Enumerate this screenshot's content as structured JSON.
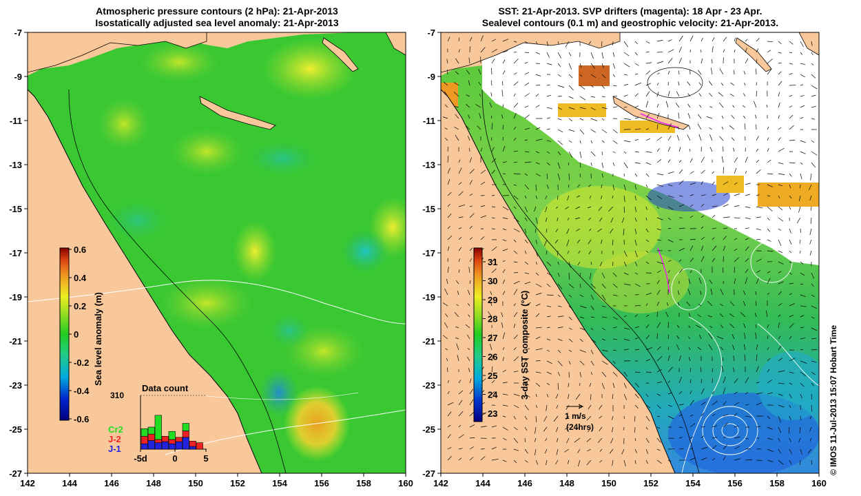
{
  "left_panel": {
    "title_line1": "Atmospheric pressure contours (2 hPa): 21-Apr-2013",
    "title_line2": "Isostatically adjusted sea level anomaly: 21-Apr-2013",
    "colorbar": {
      "label": "Sea level anomaly (m)",
      "ticks": [
        "0.6",
        "0.4",
        "0.2",
        "0",
        "-0.2",
        "-0.4",
        "-0.6"
      ],
      "range": [
        -0.6,
        0.6
      ]
    },
    "data_count": {
      "title": "Data count",
      "max_label": "310",
      "x_ticks": [
        "-5d",
        "0",
        "5"
      ],
      "legend": [
        {
          "label": "Cr2",
          "color": "#22dd22"
        },
        {
          "label": "J-2",
          "color": "#ee2222"
        },
        {
          "label": "J-1",
          "color": "#2222dd"
        }
      ],
      "bars": [
        {
          "day": -4,
          "j1": 0.1,
          "j2": 0.14,
          "cr2": 0.14
        },
        {
          "day": -3,
          "j1": 0.16,
          "j2": 0.12,
          "cr2": 0.13
        },
        {
          "day": -2,
          "j1": 0.12,
          "j2": 0.06,
          "cr2": 0.45
        },
        {
          "day": -1,
          "j1": 0.14,
          "j2": 0.1,
          "cr2": 0.0
        },
        {
          "day": 0,
          "j1": 0.1,
          "j2": 0.08,
          "cr2": 0.15
        },
        {
          "day": 1,
          "j1": 0.14,
          "j2": 0.08,
          "cr2": 0.0
        },
        {
          "day": 2,
          "j1": 0.22,
          "j2": 0.12,
          "cr2": 0.14
        },
        {
          "day": 3,
          "j1": 0.05,
          "j2": 0.1,
          "cr2": 0.0
        },
        {
          "day": 4,
          "j1": 0.0,
          "j2": 0.12,
          "cr2": 0.0
        }
      ]
    }
  },
  "right_panel": {
    "title_line1": "SST: 21-Apr-2013. SVP drifters (magenta): 18 Apr - 23 Apr.",
    "title_line2": "Sealevel contours (0.1 m) and geostrophic velocity: 21-Apr-2013.",
    "colorbar": {
      "label": "3-day SST composite (°C)",
      "ticks": [
        "31",
        "30",
        "29",
        "28",
        "27",
        "26",
        "25",
        "24",
        "23"
      ],
      "range": [
        22.5,
        31.8
      ]
    },
    "scale_arrow": {
      "line1": "1 m/s",
      "line2": "(24hrs)"
    }
  },
  "axes": {
    "lon_ticks": [
      "142",
      "144",
      "146",
      "148",
      "150",
      "152",
      "154",
      "156",
      "158",
      "160"
    ],
    "lat_ticks": [
      "-7",
      "-9",
      "-11",
      "-13",
      "-15",
      "-17",
      "-19",
      "-21",
      "-23",
      "-25",
      "-27"
    ],
    "lon_range": [
      142,
      160
    ],
    "lat_range": [
      -27,
      -7
    ]
  },
  "credit": "© IMOS 11-Jul-2013 15:07 Hobart Time",
  "colors": {
    "land": "#f9c89a",
    "sea_green": "#33cc33",
    "sea_yellow": "#e7ef2a",
    "sea_cyan": "#22bbbb",
    "sst_white": "#ffffff",
    "drifters": "#ee22ee"
  }
}
